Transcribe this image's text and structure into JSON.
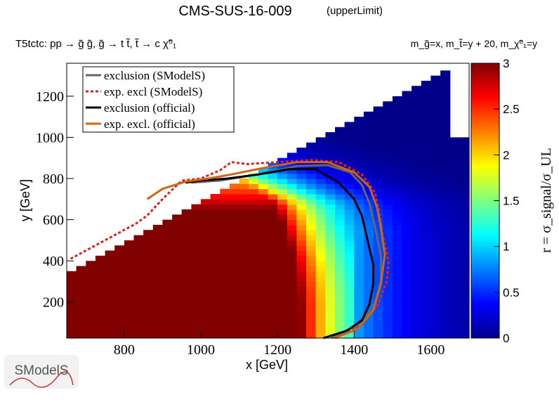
{
  "header": {
    "title": "CMS-SUS-16-009",
    "subtitle": "(upperLimit)",
    "process_left": "T5tctc: pp → g̃ g̃, g̃ → t t̃, t̃ → c χ̃⁰₁",
    "mass_right": "m_g̃=x, m_t̃=y + 20, m_χ̃⁰₁=y"
  },
  "logo": {
    "text": "SModelS"
  },
  "chart_data": {
    "type": "heatmap",
    "xlabel": "x [GeV]",
    "ylabel": "y [GeV]",
    "zlabel": "r = σ_signal/σ_UL",
    "xlim": [
      650,
      1700
    ],
    "ylim": [
      25,
      1360
    ],
    "zlim": [
      0,
      3
    ],
    "x_ticks": [
      800,
      1000,
      1200,
      1400,
      1600
    ],
    "y_ticks": [
      200,
      400,
      600,
      800,
      1000,
      1200
    ],
    "z_ticks": [
      "0",
      "0.5",
      "1",
      "1.5",
      "2",
      "2.5",
      "3"
    ],
    "colormap": "jet",
    "grid": false,
    "legend_position": "top-left",
    "series": [
      {
        "name": "exclusion (SModelS)",
        "color": "#666666",
        "style": "solid",
        "points": [
          [
            1340,
            25
          ],
          [
            1400,
            80
          ],
          [
            1450,
            170
          ],
          [
            1470,
            300
          ],
          [
            1470,
            420
          ],
          [
            1455,
            560
          ],
          [
            1440,
            680
          ],
          [
            1420,
            770
          ],
          [
            1390,
            830
          ],
          [
            1330,
            865
          ],
          [
            1250,
            860
          ],
          [
            1150,
            820
          ],
          [
            1050,
            790
          ],
          [
            975,
            780
          ]
        ]
      },
      {
        "name": "exp. excl (SModelS)",
        "color": "#dd2222",
        "style": "dotted",
        "points": [
          [
            660,
            410
          ],
          [
            700,
            450
          ],
          [
            780,
            530
          ],
          [
            830,
            580
          ],
          [
            860,
            620
          ],
          [
            900,
            700
          ],
          [
            950,
            790
          ],
          [
            1000,
            800
          ],
          [
            1050,
            840
          ],
          [
            1080,
            880
          ],
          [
            1120,
            870
          ],
          [
            1200,
            880
          ],
          [
            1290,
            890
          ],
          [
            1360,
            880
          ],
          [
            1420,
            820
          ],
          [
            1455,
            730
          ],
          [
            1465,
            640
          ],
          [
            1475,
            520
          ],
          [
            1490,
            400
          ],
          [
            1485,
            300
          ],
          [
            1460,
            180
          ],
          [
            1420,
            90
          ],
          [
            1380,
            50
          ],
          [
            1350,
            25
          ]
        ]
      },
      {
        "name": "exclusion (official)",
        "color": "#000000",
        "style": "solid",
        "points": [
          [
            1320,
            25
          ],
          [
            1380,
            60
          ],
          [
            1420,
            110
          ],
          [
            1440,
            190
          ],
          [
            1450,
            290
          ],
          [
            1450,
            380
          ],
          [
            1440,
            460
          ],
          [
            1430,
            540
          ],
          [
            1420,
            620
          ],
          [
            1400,
            700
          ],
          [
            1360,
            780
          ],
          [
            1300,
            845
          ],
          [
            1230,
            845
          ],
          [
            1150,
            820
          ],
          [
            1070,
            800
          ],
          [
            1000,
            790
          ],
          [
            960,
            780
          ]
        ]
      },
      {
        "name": "exp. excl. (official)",
        "color": "#cc6611",
        "style": "solid",
        "points": [
          [
            1350,
            25
          ],
          [
            1410,
            70
          ],
          [
            1450,
            160
          ],
          [
            1470,
            290
          ],
          [
            1480,
            430
          ],
          [
            1470,
            560
          ],
          [
            1460,
            660
          ],
          [
            1440,
            760
          ],
          [
            1400,
            830
          ],
          [
            1330,
            880
          ],
          [
            1250,
            880
          ],
          [
            1160,
            850
          ],
          [
            1080,
            820
          ],
          [
            1020,
            800
          ],
          [
            960,
            785
          ],
          [
            900,
            750
          ],
          [
            860,
            700
          ]
        ]
      }
    ]
  }
}
